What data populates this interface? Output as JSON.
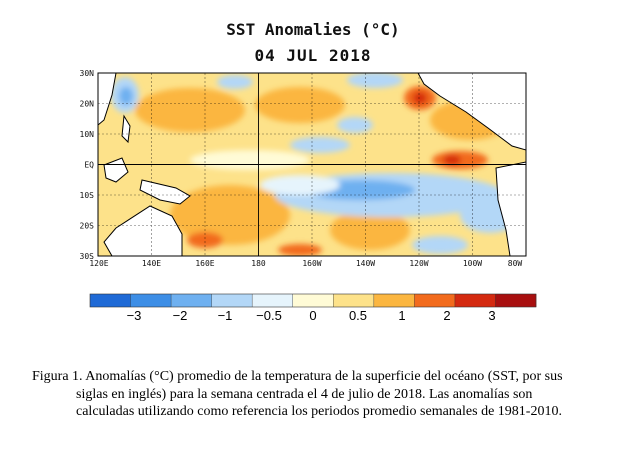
{
  "title": "SST Anomalies (°C)",
  "date": "04 JUL 2018",
  "map": {
    "lat_labels": [
      "30N",
      "20N",
      "10N",
      "EQ",
      "10S",
      "20S",
      "30S"
    ],
    "lon_labels": [
      "120E",
      "140E",
      "160E",
      "180",
      "160W",
      "140W",
      "120W",
      "100W",
      "80W"
    ],
    "colors": {
      "v_neg3": "#1f6ad6",
      "neg2": "#3d8ee6",
      "neg1": "#6eb0f0",
      "neg05": "#b3d7f7",
      "near0": "#e6f4fc",
      "pos0": "#fffbd6",
      "pos05": "#fde28a",
      "pos1": "#fbb640",
      "pos2": "#f26b1d",
      "pos3": "#d42a10",
      "v_pos3": "#a80f0f"
    }
  },
  "colorbar": {
    "colors": [
      "#1f6ad6",
      "#3d8ee6",
      "#6eb0f0",
      "#b3d7f7",
      "#e6f4fc",
      "#fffbd6",
      "#fde28a",
      "#fbb640",
      "#f26b1d",
      "#d42a10",
      "#a80f0f"
    ],
    "tick_labels": [
      "−3",
      "−2",
      "−1",
      "−0.5",
      "0",
      "0.5",
      "1",
      "2",
      "3"
    ]
  },
  "caption": {
    "line1": "Figura 1. Anomalías (°C) promedio de la temperatura de la superficie del océano (SST, por sus",
    "rest": "siglas en inglés) para la semana centrada el 4 de julio de 2018. Las anomalías son calculadas utilizando como referencia los periodos promedio semanales de 1981-2010."
  }
}
